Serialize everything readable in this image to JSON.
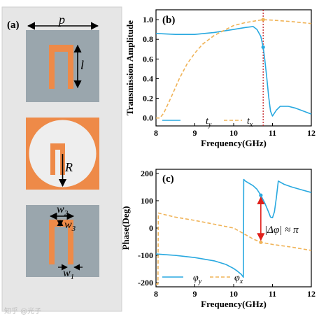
{
  "panel_a": {
    "label": "(a)",
    "dim_p": "p",
    "dim_l": "l",
    "dim_R": "R",
    "dim_w2": "w",
    "dim_w2_sub": "2",
    "dim_w3": "w",
    "dim_w3_sub": "3",
    "dim_w1": "w",
    "dim_w1_sub": "1",
    "colors": {
      "background": "#e6e6e6",
      "substrate": "#9aa6ad",
      "metal": "#ee8a48",
      "circle": "#eeeeee"
    }
  },
  "watermark": "知乎 @光子",
  "chart_data": [
    {
      "type": "line",
      "label": "(b)",
      "xlabel": "Frequency(GHz)",
      "ylabel": "Transmission Amplitude",
      "xlim": [
        8,
        12
      ],
      "ylim": [
        -0.08,
        1.1
      ],
      "xticks": [
        "8",
        "9",
        "10",
        "11",
        "12"
      ],
      "yticks": [
        "0.0",
        "0.2",
        "0.4",
        "0.6",
        "0.8",
        "1.0"
      ],
      "marker_line_x": 10.76,
      "series": [
        {
          "name": "t",
          "sub": "y",
          "color": "#29a9e0",
          "dash": "solid",
          "x": [
            8,
            8.5,
            9,
            9.5,
            10,
            10.3,
            10.5,
            10.6,
            10.7,
            10.76,
            10.8,
            10.85,
            10.9,
            10.95,
            11,
            11.05,
            11.1,
            11.2,
            11.4,
            11.6,
            11.8,
            12
          ],
          "y": [
            0.86,
            0.85,
            0.85,
            0.87,
            0.9,
            0.92,
            0.93,
            0.9,
            0.83,
            0.72,
            0.6,
            0.42,
            0.22,
            0.07,
            0.02,
            0.05,
            0.08,
            0.12,
            0.12,
            0.1,
            0.07,
            0.04
          ]
        },
        {
          "name": "t",
          "sub": "x",
          "color": "#f0b357",
          "dash": "dash",
          "x": [
            8,
            8.1,
            8.2,
            8.4,
            8.6,
            8.8,
            9,
            9.2,
            9.5,
            9.8,
            10,
            10.3,
            10.6,
            10.76,
            11,
            11.5,
            12
          ],
          "y": [
            0.0,
            0.0,
            0.05,
            0.22,
            0.4,
            0.55,
            0.66,
            0.75,
            0.84,
            0.9,
            0.94,
            0.97,
            0.99,
            1.0,
            0.995,
            0.98,
            0.96
          ]
        }
      ],
      "markers": [
        {
          "x": 10.76,
          "y": 1.0,
          "color": "#f0b357"
        },
        {
          "x": 10.76,
          "y": 0.72,
          "color": "#29a9e0"
        }
      ]
    },
    {
      "type": "line",
      "label": "(c)",
      "xlabel": "Frequency(GHz)",
      "ylabel": "Phase(Deg)",
      "xlim": [
        8,
        12
      ],
      "ylim": [
        -215,
        215
      ],
      "xticks": [
        "8",
        "9",
        "10",
        "11",
        "12"
      ],
      "yticks": [
        "-200",
        "-100",
        "0",
        "100",
        "200"
      ],
      "annotation": "|Δφ| ≈ π",
      "series": [
        {
          "name": "φ",
          "sub": "y",
          "color": "#29a9e0",
          "dash": "solid",
          "x": [
            8,
            8.5,
            9,
            9.5,
            9.8,
            10,
            10.1,
            10.2,
            10.25,
            10.26,
            10.3,
            10.5,
            10.6,
            10.7,
            10.8,
            10.9,
            10.95,
            11,
            11.05,
            11.1,
            11.15,
            11.3,
            11.5,
            11.8,
            12
          ],
          "y": [
            -95,
            -100,
            -108,
            -120,
            -133,
            -148,
            -158,
            -170,
            -180,
            178,
            172,
            155,
            142,
            120,
            92,
            58,
            40,
            38,
            60,
            110,
            172,
            160,
            150,
            138,
            130
          ]
        },
        {
          "name": "φ",
          "sub": "x",
          "color": "#f0b357",
          "dash": "dash",
          "x": [
            8,
            8.05,
            8.06,
            8.2,
            8.5,
            9,
            9.5,
            10,
            10.5,
            10.7,
            11,
            11.5,
            12
          ],
          "y": [
            -205,
            -205,
            55,
            50,
            40,
            28,
            14,
            0,
            -40,
            -52,
            -60,
            -70,
            -82
          ]
        }
      ],
      "markers": [
        {
          "x": 10.7,
          "y": 120,
          "color": "#29a9e0"
        },
        {
          "x": 10.7,
          "y": -52,
          "color": "#f0b357"
        }
      ]
    }
  ]
}
